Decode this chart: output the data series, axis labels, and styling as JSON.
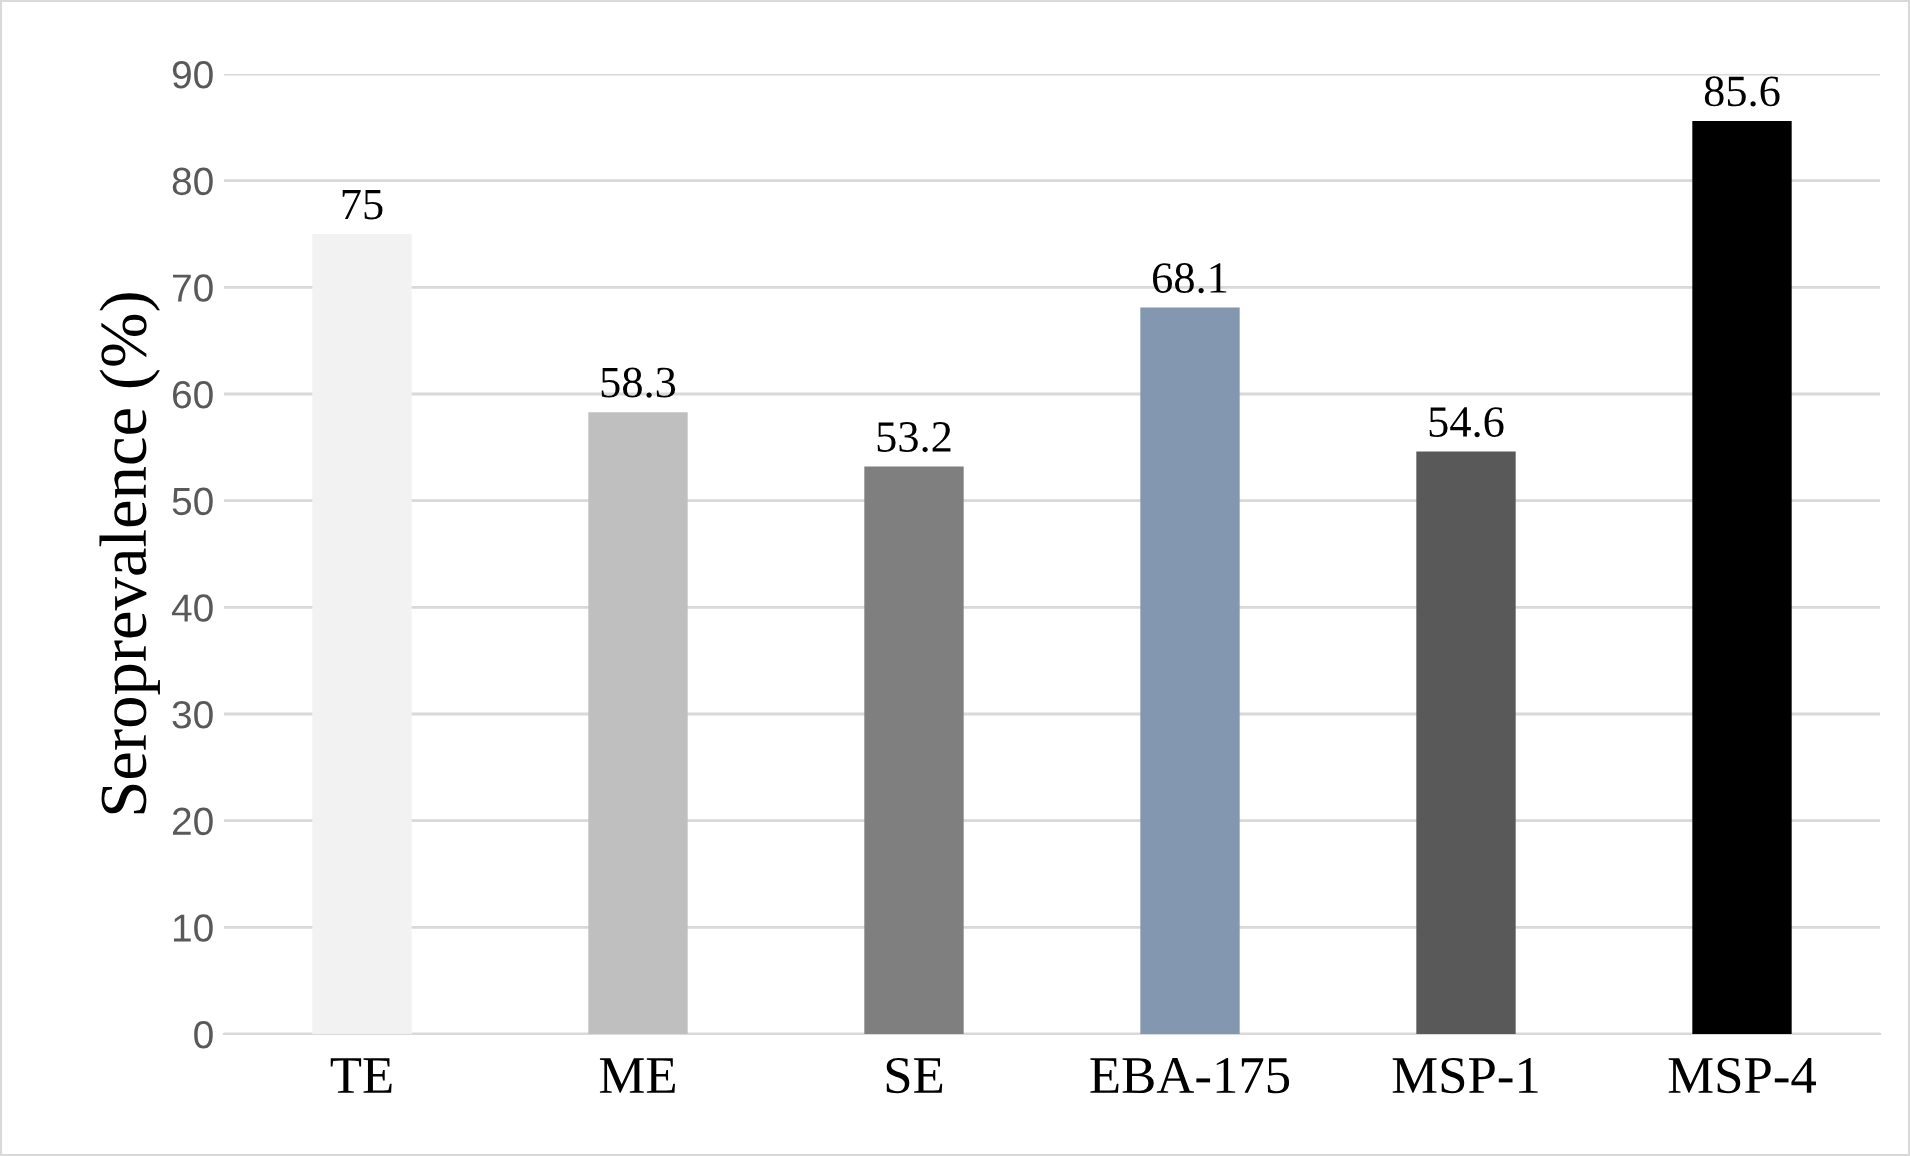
{
  "chart_data": {
    "type": "bar",
    "ylabel": "Seroprevalence (%)",
    "categories": [
      "TE",
      "ME",
      "SE",
      "EBA-175",
      "MSP-1",
      "MSP-4"
    ],
    "values": [
      75,
      58.3,
      53.2,
      68.1,
      54.6,
      85.6
    ],
    "colors": [
      "#f2f2f2",
      "#bfbfbf",
      "#7f7f7f",
      "#8497b0",
      "#595959",
      "#000000"
    ],
    "ylim": [
      0,
      90
    ],
    "yticks": [
      0,
      10,
      20,
      30,
      40,
      50,
      60,
      70,
      80,
      90
    ],
    "grid": "y",
    "data_labels": true,
    "legend": false
  }
}
